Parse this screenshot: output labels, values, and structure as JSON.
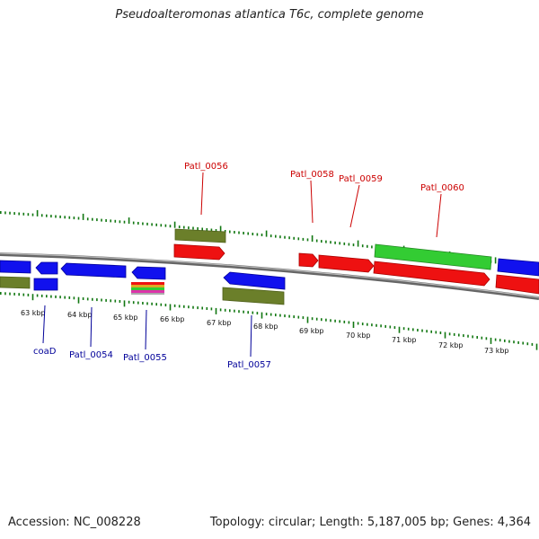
{
  "title": "Pseudoalteromonas atlantica T6c, complete genome",
  "footer": {
    "accession": "Accession: NC_008228",
    "summary": "Topology: circular; Length: 5,187,005 bp; Genes: 4,364"
  },
  "colors": {
    "forward_cds": "#ee1111",
    "reverse_cds": "#1111ee",
    "other_feature": "#667722",
    "rna": "#33cc33",
    "backbone": "#888888",
    "ticks": "#117711",
    "forward_label": "#cc0000",
    "reverse_label": "#000099"
  },
  "scale_ticks_kbp": [
    {
      "text": "63 kbp"
    },
    {
      "text": "64 kbp"
    },
    {
      "text": "65 kbp"
    },
    {
      "text": "66 kbp"
    },
    {
      "text": "67 kbp"
    },
    {
      "text": "68 kbp"
    },
    {
      "text": "69 kbp"
    },
    {
      "text": "70 kbp"
    },
    {
      "text": "71 kbp"
    },
    {
      "text": "72 kbp"
    },
    {
      "text": "73 kbp"
    }
  ],
  "labels": {
    "forward": [
      {
        "id": "Patl_0056",
        "text": "Patl_0056"
      },
      {
        "id": "Patl_0058",
        "text": "Patl_0058"
      },
      {
        "id": "Patl_0059",
        "text": "Patl_0059"
      },
      {
        "id": "Patl_0060",
        "text": "Patl_0060"
      }
    ],
    "reverse": [
      {
        "id": "coaD",
        "text": "coaD"
      },
      {
        "id": "Patl_0054",
        "text": "Patl_0054"
      },
      {
        "id": "Patl_0055",
        "text": "Patl_0055"
      },
      {
        "id": "Patl_0057",
        "text": "Patl_0057"
      }
    ]
  }
}
